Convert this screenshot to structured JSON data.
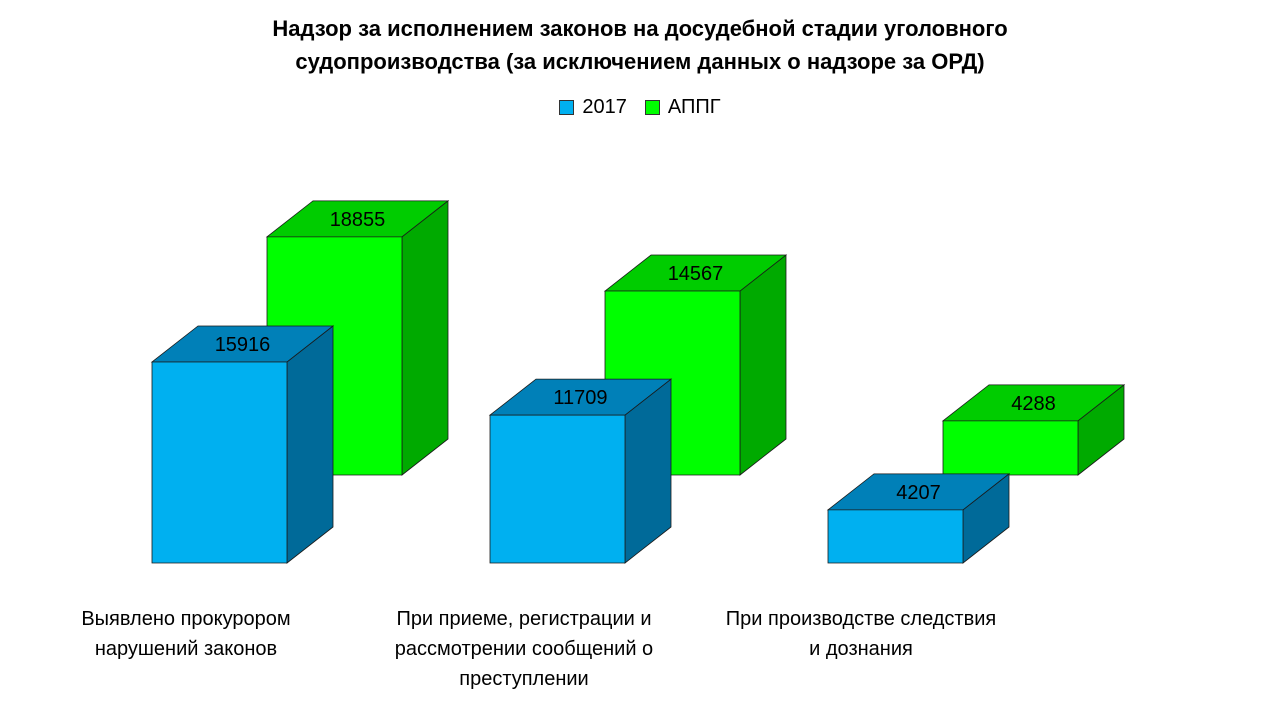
{
  "chart_data": {
    "type": "bar",
    "title_lines": [
      "Надзор за исполнением законов на досудебной стадии уголовного",
      "судопроизводства (за исключением данных о надзоре за ОРД)"
    ],
    "categories": [
      [
        "Выявлено прокурором",
        "нарушений законов"
      ],
      [
        "При приеме, регистрации и",
        "рассмотрении сообщений о",
        "преступлении"
      ],
      [
        "При производстве следствия",
        "и дознания"
      ]
    ],
    "series": [
      {
        "name": "2017",
        "values": [
          15916,
          11709,
          4207
        ],
        "colors": {
          "front": "#00b0f0",
          "top": "#0080b8",
          "side": "#006a99"
        }
      },
      {
        "name": "АППГ",
        "values": [
          18855,
          14567,
          4288
        ],
        "colors": {
          "front": "#00ff00",
          "top": "#00cc00",
          "side": "#00aa00"
        }
      }
    ],
    "value_labels": [
      [
        "15916",
        "11709",
        "4207"
      ],
      [
        "18855",
        "14567",
        "4288"
      ]
    ],
    "legend": {
      "position": "top-center"
    },
    "grid": false,
    "axes_visible": false
  }
}
